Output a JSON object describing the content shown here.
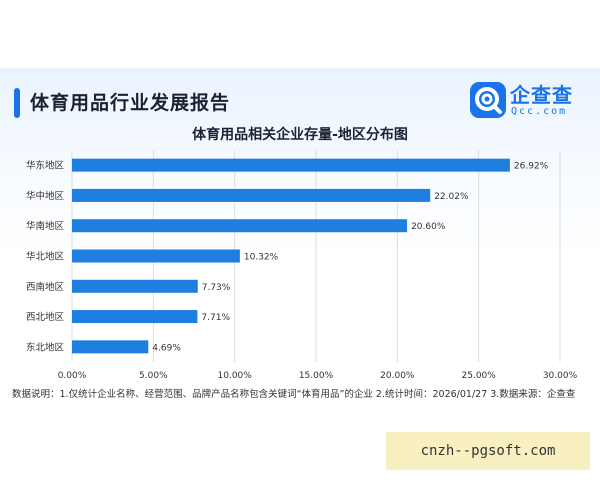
{
  "header": {
    "title": "体育用品行业发展报告",
    "logo_name": "企查查",
    "logo_domain": "Qcc.com"
  },
  "colors": {
    "bar": "#1f7fe0",
    "accent": "#1a73e8"
  },
  "chart_data": {
    "type": "bar",
    "orientation": "horizontal",
    "title": "体育用品相关企业存量-地区分布图",
    "categories": [
      "华东地区",
      "华中地区",
      "华南地区",
      "华北地区",
      "西南地区",
      "西北地区",
      "东北地区"
    ],
    "values": [
      26.92,
      22.02,
      20.6,
      10.32,
      7.73,
      7.71,
      4.69
    ],
    "value_labels": [
      "26.92%",
      "22.02%",
      "20.60%",
      "10.32%",
      "7.73%",
      "7.71%",
      "4.69%"
    ],
    "xlim": [
      0,
      30
    ],
    "xticks": [
      "0.00%",
      "5.00%",
      "10.00%",
      "15.00%",
      "20.00%",
      "25.00%",
      "30.00%"
    ],
    "grid": true,
    "legend": "none"
  },
  "footnote": "数据说明：1.仅统计企业名称、经营范围、品牌产品名称包含关键词“体育用品”的企业   2.统计时间：2026/01/27   3.数据来源：企查查",
  "watermark": "cnzh--pgsoft.com"
}
